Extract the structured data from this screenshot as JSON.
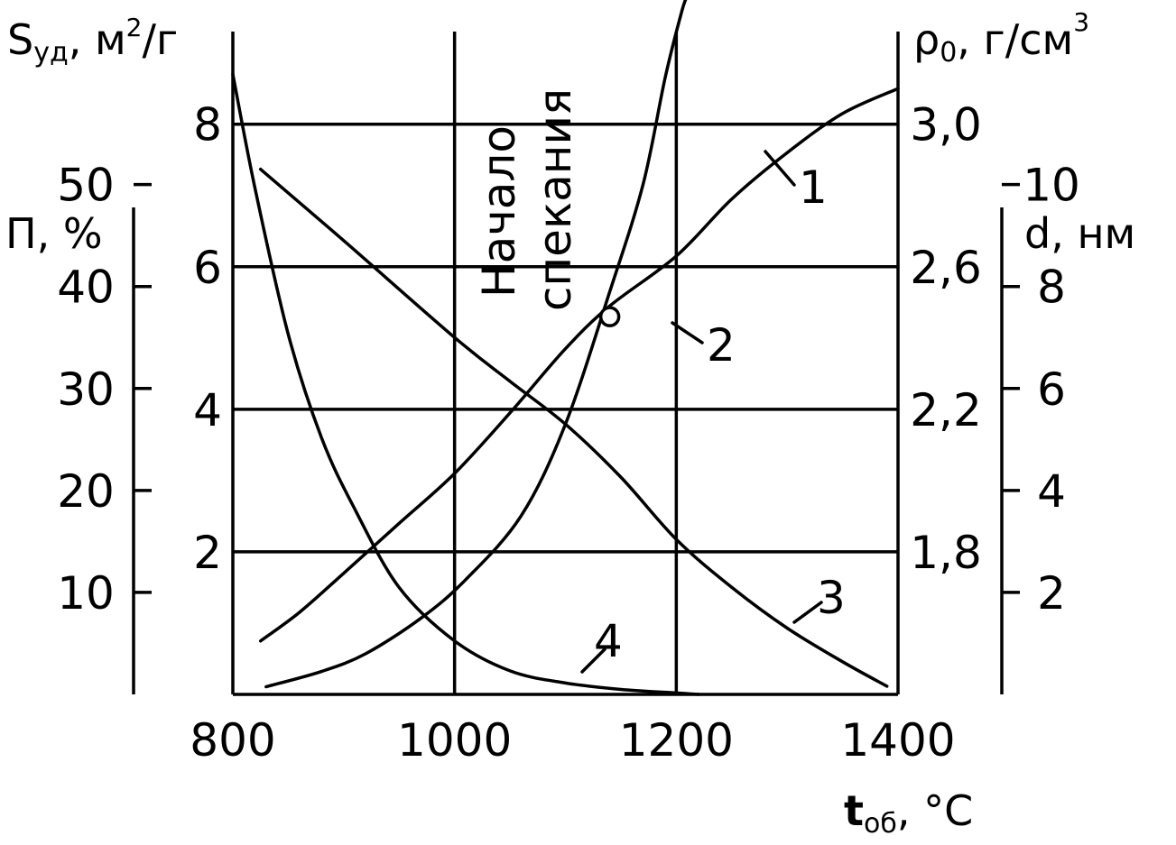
{
  "chart_data": {
    "type": "line",
    "x_axis": {
      "label": "t",
      "label_sub": "об",
      "unit": ", °C",
      "ticks": [
        800,
        1000,
        1200,
        1400
      ],
      "range": [
        800,
        1400
      ]
    },
    "y_axes": {
      "S": {
        "label": "S",
        "label_sub": "уд",
        "unit": ", м",
        "unit_sup": "2",
        "unit_tail": "/г",
        "range": [
          0,
          9.3
        ],
        "ticks": [
          2,
          4,
          6,
          8
        ]
      },
      "P": {
        "label": "П, %",
        "range": [
          0,
          65
        ],
        "ticks": [
          10,
          20,
          30,
          40,
          50
        ]
      },
      "rho": {
        "label": "ρ",
        "label_sub": "0",
        "unit": ", г/см",
        "unit_sup": "3",
        "range": [
          1.4,
          3.26
        ],
        "ticks": [
          "1,8",
          "2,2",
          "2,6",
          "3,0"
        ],
        "tick_values": [
          1.8,
          2.2,
          2.6,
          3.0
        ]
      },
      "d": {
        "label": "d, нм",
        "range": [
          0,
          13
        ],
        "ticks": [
          2,
          4,
          6,
          8,
          10
        ]
      }
    },
    "annotation": {
      "line1": "Начало",
      "line2": "спекания",
      "point": {
        "series": "1",
        "x": 1140,
        "y": 2.46
      }
    },
    "grid": true,
    "series": [
      {
        "name": "1",
        "axis": "rho",
        "x": [
          825,
          860,
          900,
          950,
          1000,
          1050,
          1100,
          1140,
          1200,
          1250,
          1300,
          1350,
          1400
        ],
        "y": [
          1.55,
          1.63,
          1.74,
          1.88,
          2.02,
          2.19,
          2.37,
          2.49,
          2.63,
          2.79,
          2.92,
          3.03,
          3.1
        ]
      },
      {
        "name": "2",
        "axis": "d",
        "x": [
          830,
          880,
          920,
          970,
          1010,
          1060,
          1100,
          1140,
          1170,
          1190,
          1205,
          1210
        ],
        "y": [
          0.15,
          0.45,
          0.8,
          1.5,
          2.25,
          3.5,
          5.3,
          7.9,
          10.0,
          12.1,
          13.4,
          13.7
        ]
      },
      {
        "name": "3",
        "axis": "P",
        "x": [
          825,
          900,
          1000,
          1050,
          1100,
          1150,
          1200,
          1250,
          1300,
          1350,
          1390
        ],
        "y": [
          51.5,
          44.5,
          35.0,
          30.7,
          26.5,
          21.3,
          15.2,
          10.5,
          6.5,
          3.2,
          0.8
        ]
      },
      {
        "name": "4",
        "axis": "S",
        "x": [
          800,
          820,
          850,
          880,
          910,
          950,
          1000,
          1050,
          1100,
          1150,
          1200,
          1220
        ],
        "y": [
          8.7,
          7.1,
          5.05,
          3.6,
          2.6,
          1.5,
          0.75,
          0.33,
          0.16,
          0.07,
          0.02,
          0.0
        ]
      }
    ]
  }
}
